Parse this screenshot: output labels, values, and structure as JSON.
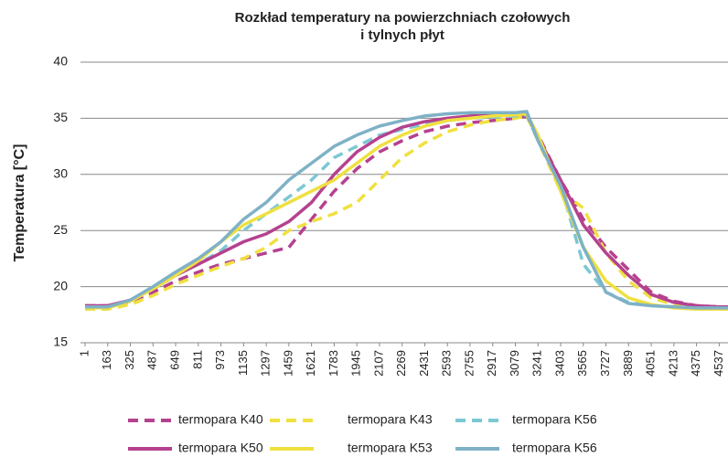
{
  "chart_data": {
    "type": "line",
    "title": [
      "Rozkład temperatury na powierzchniach czołowych",
      "i tylnych płyt"
    ],
    "y_label": "Temperatura [°C]",
    "x": [
      1,
      163,
      325,
      487,
      649,
      811,
      973,
      1135,
      1297,
      1459,
      1621,
      1783,
      1945,
      2107,
      2269,
      2431,
      2593,
      2755,
      2917,
      3079,
      3160,
      3241,
      3403,
      3565,
      3727,
      3889,
      4051,
      4213,
      4375,
      4537,
      4600
    ],
    "xlim": [
      1,
      4600
    ],
    "xticks": [
      1,
      163,
      325,
      487,
      649,
      811,
      973,
      1135,
      1297,
      1459,
      1621,
      1783,
      1945,
      2107,
      2269,
      2431,
      2593,
      2755,
      2917,
      3079,
      3241,
      3403,
      3565,
      3727,
      3889,
      4051,
      4213,
      4375,
      4537
    ],
    "ylim": [
      15,
      40
    ],
    "yticks": [
      15,
      20,
      25,
      30,
      35,
      40
    ],
    "grid": true,
    "legend": "bottom",
    "series": [
      {
        "name": "termopara K40",
        "color": "#b5418f",
        "dashed": true,
        "values": [
          18.3,
          18.3,
          18.6,
          19.5,
          20.5,
          21.3,
          22,
          22.5,
          23,
          23.5,
          26,
          28.5,
          30.5,
          32,
          33,
          33.8,
          34.3,
          34.6,
          34.8,
          35,
          35.2,
          33.5,
          29.5,
          26,
          23.5,
          21.5,
          19.5,
          18.7,
          18.3,
          18.2,
          18.2
        ]
      },
      {
        "name": "termopara K43",
        "color": "#f0e040",
        "dashed": true,
        "values": [
          18,
          18,
          18.4,
          19.2,
          20.2,
          21,
          21.8,
          22.5,
          23.5,
          25,
          25.8,
          26.5,
          27.5,
          29.5,
          31.5,
          32.8,
          33.8,
          34.4,
          34.8,
          35,
          35.2,
          33,
          28.5,
          27,
          23,
          20.5,
          19,
          18.4,
          18.2,
          18,
          18
        ]
      },
      {
        "name": "termopara K56",
        "color": "#7cc8d4",
        "dashed": true,
        "values": [
          18.1,
          18.1,
          18.7,
          19.8,
          21,
          22,
          23.2,
          25,
          26.5,
          28,
          29.5,
          31.5,
          32.5,
          33.5,
          34,
          34.5,
          34.8,
          35,
          35.1,
          35.2,
          35.3,
          33,
          29,
          22,
          19.5,
          18.6,
          18.3,
          18.2,
          18.1,
          18.1,
          18.1
        ]
      },
      {
        "name": "termopara K50",
        "color": "#b5418f",
        "dashed": false,
        "values": [
          18.3,
          18.3,
          18.8,
          19.8,
          21,
          22,
          23,
          24,
          24.7,
          25.8,
          27.5,
          30,
          32,
          33.3,
          34.2,
          34.7,
          35,
          35.2,
          35.3,
          35.3,
          35.4,
          33.3,
          29.5,
          25.5,
          23,
          21,
          19.3,
          18.6,
          18.3,
          18.2,
          18.2
        ]
      },
      {
        "name": "termopara K53",
        "color": "#f0e040",
        "dashed": false,
        "values": [
          18.1,
          18.1,
          18.7,
          19.8,
          21,
          22.3,
          24,
          25.5,
          26.5,
          27.5,
          28.5,
          29.5,
          31,
          32.5,
          33.5,
          34.3,
          34.8,
          35,
          35.2,
          35.3,
          35.4,
          33.5,
          28.5,
          23.5,
          20.5,
          19,
          18.4,
          18.1,
          18,
          18,
          18
        ]
      },
      {
        "name": "termopara K56",
        "color": "#7fb1c6",
        "dashed": false,
        "values": [
          18.2,
          18.2,
          18.8,
          20,
          21.3,
          22.5,
          24,
          26,
          27.5,
          29.5,
          31,
          32.5,
          33.5,
          34.3,
          34.8,
          35.2,
          35.4,
          35.5,
          35.5,
          35.5,
          35.6,
          33,
          29,
          23.5,
          19.5,
          18.5,
          18.3,
          18.2,
          18.1,
          18.1,
          18.1
        ]
      }
    ]
  }
}
